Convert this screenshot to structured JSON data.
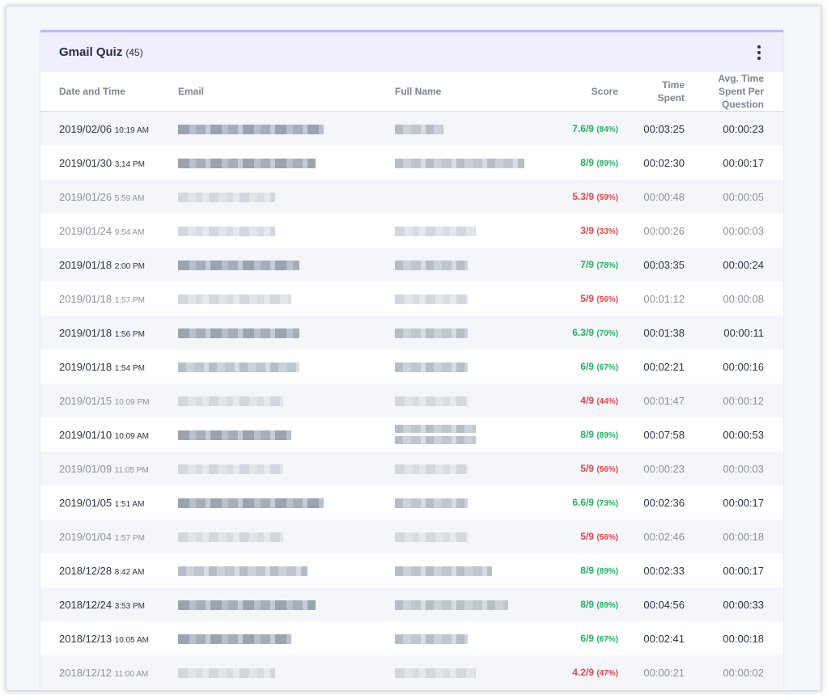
{
  "card": {
    "title": "Gmail Quiz",
    "count": "(45)"
  },
  "columns": {
    "date": "Date and Time",
    "email": "Email",
    "name": "Full Name",
    "score": "Score",
    "time": [
      "Time",
      "Spent"
    ],
    "avg": [
      "Avg. Time",
      "Spent Per",
      "Question"
    ]
  },
  "colors": {
    "pass": "#22b35e",
    "fail": "#e5454b",
    "accent": "#c3b9f2"
  },
  "rows": [
    {
      "date": "2019/02/06",
      "time": "10:19 AM",
      "score": "7.6/9",
      "pct": "(84%)",
      "spent": "00:03:25",
      "avg": "00:00:23",
      "pass": true,
      "active": true
    },
    {
      "date": "2019/01/30",
      "time": "3:14 PM",
      "score": "8/9",
      "pct": "(89%)",
      "spent": "00:02:30",
      "avg": "00:00:17",
      "pass": true,
      "active": true
    },
    {
      "date": "2019/01/26",
      "time": "5:59 AM",
      "score": "5.3/9",
      "pct": "(59%)",
      "spent": "00:00:48",
      "avg": "00:00:05",
      "pass": false,
      "active": false
    },
    {
      "date": "2019/01/24",
      "time": "9:54 AM",
      "score": "3/9",
      "pct": "(33%)",
      "spent": "00:00:26",
      "avg": "00:00:03",
      "pass": false,
      "active": false
    },
    {
      "date": "2019/01/18",
      "time": "2:00 PM",
      "score": "7/9",
      "pct": "(78%)",
      "spent": "00:03:35",
      "avg": "00:00:24",
      "pass": true,
      "active": true
    },
    {
      "date": "2019/01/18",
      "time": "1:57 PM",
      "score": "5/9",
      "pct": "(56%)",
      "spent": "00:01:12",
      "avg": "00:00:08",
      "pass": false,
      "active": false
    },
    {
      "date": "2019/01/18",
      "time": "1:56 PM",
      "score": "6.3/9",
      "pct": "(70%)",
      "spent": "00:01:38",
      "avg": "00:00:11",
      "pass": true,
      "active": true
    },
    {
      "date": "2019/01/18",
      "time": "1:54 PM",
      "score": "6/9",
      "pct": "(67%)",
      "spent": "00:02:21",
      "avg": "00:00:16",
      "pass": true,
      "active": true
    },
    {
      "date": "2019/01/15",
      "time": "10:09 PM",
      "score": "4/9",
      "pct": "(44%)",
      "spent": "00:01:47",
      "avg": "00:00:12",
      "pass": false,
      "active": false
    },
    {
      "date": "2019/01/10",
      "time": "10:09 AM",
      "score": "8/9",
      "pct": "(89%)",
      "spent": "00:07:58",
      "avg": "00:00:53",
      "pass": true,
      "active": true
    },
    {
      "date": "2019/01/09",
      "time": "11:05 PM",
      "score": "5/9",
      "pct": "(56%)",
      "spent": "00:00:23",
      "avg": "00:00:03",
      "pass": false,
      "active": false
    },
    {
      "date": "2019/01/05",
      "time": "1:51 AM",
      "score": "6.6/9",
      "pct": "(73%)",
      "spent": "00:02:36",
      "avg": "00:00:17",
      "pass": true,
      "active": true
    },
    {
      "date": "2019/01/04",
      "time": "1:57 PM",
      "score": "5/9",
      "pct": "(56%)",
      "spent": "00:02:46",
      "avg": "00:00:18",
      "pass": false,
      "active": false
    },
    {
      "date": "2018/12/28",
      "time": "8:42 AM",
      "score": "8/9",
      "pct": "(89%)",
      "spent": "00:02:33",
      "avg": "00:00:17",
      "pass": true,
      "active": true
    },
    {
      "date": "2018/12/24",
      "time": "3:53 PM",
      "score": "8/9",
      "pct": "(89%)",
      "spent": "00:04:56",
      "avg": "00:00:33",
      "pass": true,
      "active": true
    },
    {
      "date": "2018/12/13",
      "time": "10:05 AM",
      "score": "6/9",
      "pct": "(67%)",
      "spent": "00:02:41",
      "avg": "00:00:18",
      "pass": true,
      "active": true
    },
    {
      "date": "2018/12/12",
      "time": "11:00 AM",
      "score": "4.2/9",
      "pct": "(47%)",
      "spent": "00:00:21",
      "avg": "00:00:02",
      "pass": false,
      "active": false
    }
  ]
}
